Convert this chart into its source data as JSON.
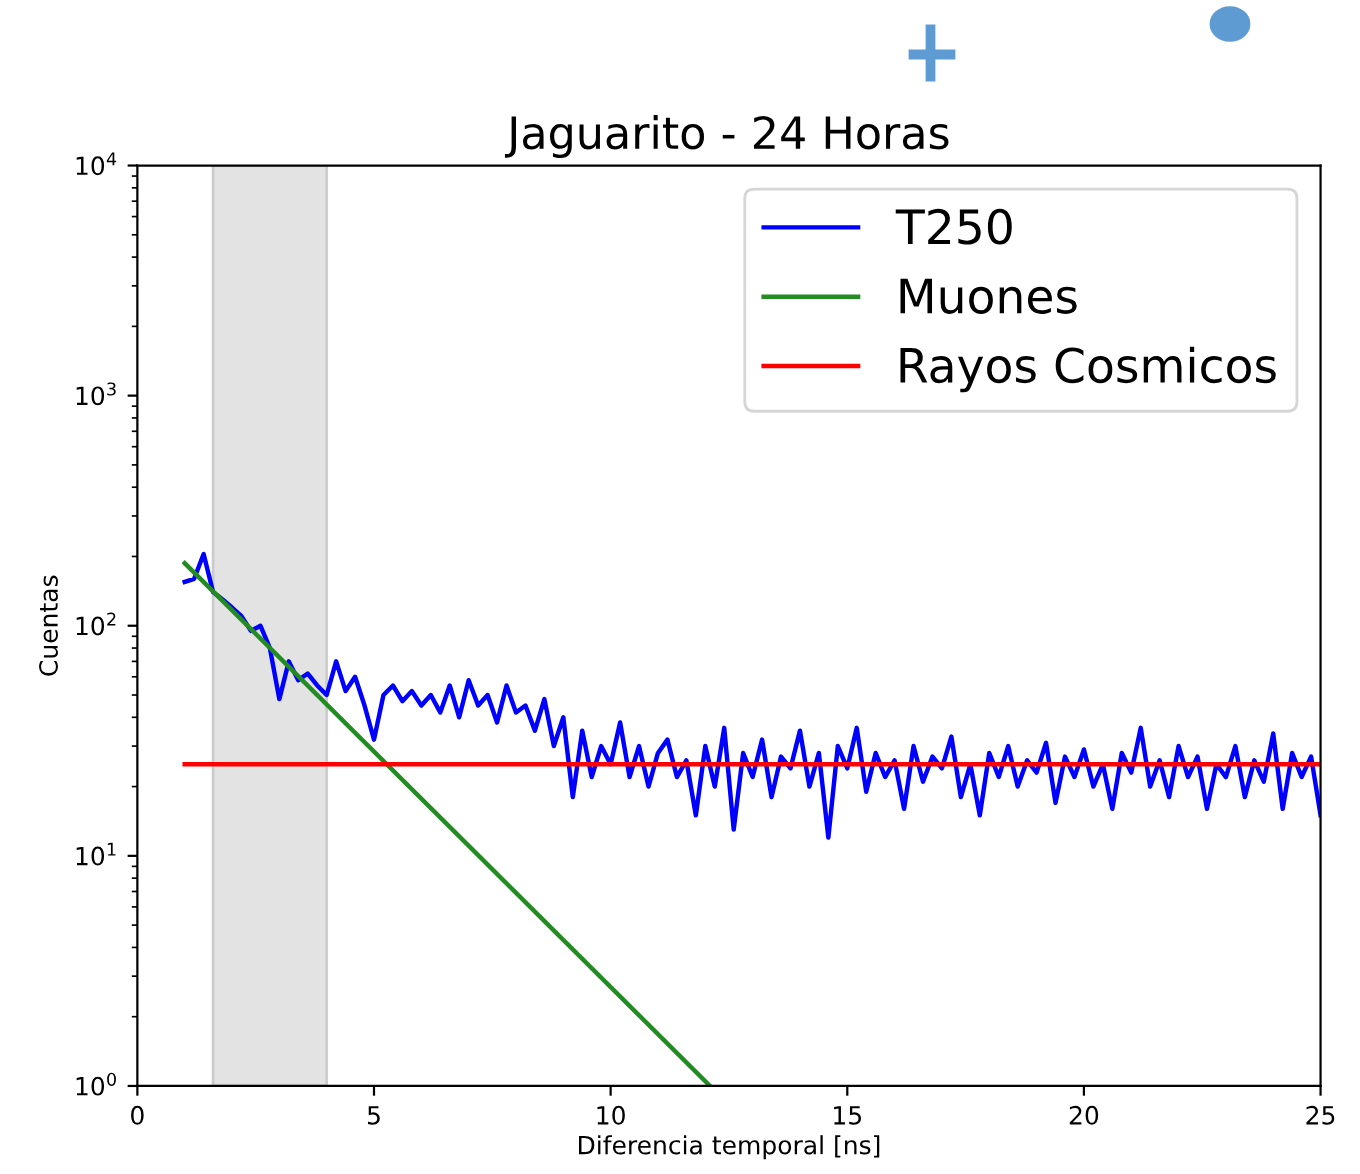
{
  "chart_data": {
    "type": "line",
    "title": "Jaguarito - 24 Horas",
    "xlabel": "Diferencia temporal [ns]",
    "ylabel": "Cuentas",
    "log": "y",
    "xlim": [
      0,
      25
    ],
    "xticks": [
      0,
      5,
      10,
      15,
      20,
      25
    ],
    "ylim": [
      1,
      10000
    ],
    "yticks": [
      {
        "value": 1,
        "label": "10$^{0}$"
      },
      {
        "value": 10,
        "label": "10$^{1}$"
      },
      {
        "value": 100,
        "label": "10$^{2}$"
      },
      {
        "value": 1000,
        "label": "10$^{3}$"
      },
      {
        "value": 10000,
        "label": "10$^{4}$"
      }
    ],
    "grid": false,
    "legend": "top right",
    "bands": [
      {
        "axis": "x",
        "from": 1.6,
        "to": 4.0,
        "color": "#e3e3e3"
      }
    ],
    "series": [
      {
        "name": "T250",
        "color": "#0000ff",
        "x": [
          1.0,
          1.2,
          1.4,
          1.6,
          1.8,
          2.0,
          2.2,
          2.4,
          2.6,
          2.8,
          3.0,
          3.2,
          3.4,
          3.6,
          3.8,
          4.0,
          4.2,
          4.4,
          4.6,
          4.8,
          5.0,
          5.2,
          5.4,
          5.6,
          5.8,
          6.0,
          6.2,
          6.4,
          6.6,
          6.8,
          7.0,
          7.2,
          7.4,
          7.6,
          7.8,
          8.0,
          8.2,
          8.4,
          8.6,
          8.8,
          9.0,
          9.2,
          9.4,
          9.6,
          9.8,
          10.0,
          10.2,
          10.4,
          10.6,
          10.8,
          11.0,
          11.2,
          11.4,
          11.6,
          11.8,
          12.0,
          12.2,
          12.4,
          12.6,
          12.8,
          13.0,
          13.2,
          13.4,
          13.6,
          13.8,
          14.0,
          14.2,
          14.4,
          14.6,
          14.8,
          15.0,
          15.2,
          15.4,
          15.6,
          15.8,
          16.0,
          16.2,
          16.4,
          16.6,
          16.8,
          17.0,
          17.2,
          17.4,
          17.6,
          17.8,
          18.0,
          18.2,
          18.4,
          18.6,
          18.8,
          19.0,
          19.2,
          19.4,
          19.6,
          19.8,
          20.0,
          20.2,
          20.4,
          20.6,
          20.8,
          21.0,
          21.2,
          21.4,
          21.6,
          21.8,
          22.0,
          22.2,
          22.4,
          22.6,
          22.8,
          23.0,
          23.2,
          23.4,
          23.6,
          23.8,
          24.0,
          24.2,
          24.4,
          24.6,
          24.8,
          25.0
        ],
        "values": [
          155,
          160,
          205,
          140,
          130,
          120,
          110,
          95,
          100,
          80,
          48,
          70,
          58,
          62,
          55,
          50,
          70,
          52,
          60,
          45,
          32,
          50,
          55,
          47,
          52,
          45,
          50,
          42,
          55,
          40,
          58,
          45,
          50,
          38,
          55,
          42,
          45,
          35,
          48,
          30,
          40,
          18,
          35,
          22,
          30,
          25,
          38,
          22,
          30,
          20,
          28,
          32,
          22,
          26,
          15,
          30,
          20,
          36,
          13,
          28,
          22,
          32,
          18,
          27,
          24,
          35,
          20,
          28,
          12,
          30,
          24,
          36,
          19,
          28,
          22,
          26,
          16,
          30,
          21,
          27,
          24,
          33,
          18,
          25,
          15,
          28,
          22,
          30,
          20,
          26,
          23,
          31,
          17,
          27,
          22,
          29,
          20,
          25,
          16,
          28,
          23,
          36,
          20,
          26,
          18,
          30,
          22,
          27,
          16,
          25,
          22,
          30,
          18,
          26,
          21,
          34,
          16,
          28,
          22,
          27,
          15
        ]
      },
      {
        "name": "Muones",
        "color": "#228b22",
        "x": [
          1.0,
          12.1
        ],
        "values": [
          187,
          1
        ]
      },
      {
        "name": "Rayos Cosmicos",
        "color": "#ff0000",
        "x": [
          1.0,
          25.0
        ],
        "values": [
          25,
          25
        ]
      }
    ]
  }
}
